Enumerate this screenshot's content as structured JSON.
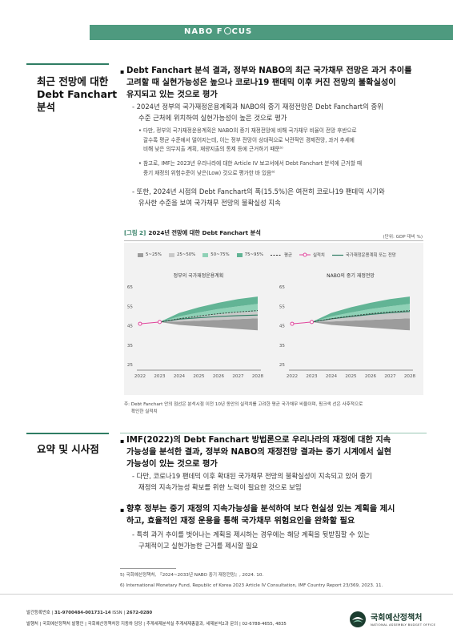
{
  "header": {
    "logo_pre": "NABO F",
    "logo_post": "CUS"
  },
  "section1": {
    "title_lines": [
      "최근 전망에 대한",
      "Debt Fanchart",
      "분석"
    ],
    "main_bullet_lines": [
      "Debt Fanchart 분석 결과, 정부와 NABO의 최근 국가채무 전망은 과거 추이를",
      "고려할 때 실현가능성은 높으나 코로나19 팬데믹 이후 커진 전망의 불확실성이",
      "유지되고 있는 것으로 평가"
    ],
    "sub1_lines": [
      "- 2024년 정부의 국가재정운용계획과 NABO의 중기 재정전망은 Debt Fanchart의 중위",
      "수준 근처에 위치하여 실현가능성이 높은 것으로 평가"
    ],
    "subsub1_lines": [
      "• 다만, 정부의 국가재정운용계획은 NABO의 중기 재정전망에 비해 국가채무 비율이 전망 후반으로",
      "갈수록 평균 수준에서 멀어지는데, 이는 정부 전망이 상대적으로 낙관적인 경제전망, 과거 추세에",
      "비해 낮은 의무지출 계획, 재량지출의 통제 등에 근거하기 때문⁵⁾"
    ],
    "subsub2_lines": [
      "• 참고로, IMF는 2023년 우리나라에 대한 Article IV 보고서에서 Debt Fanchart 분석에 근거할 때",
      "중기 재정의 위험수준이 낮은(Low) 것으로 평가한 바 있음⁶⁾"
    ],
    "sub2_lines": [
      "- 또한, 2024년 시점의 Debt Fanchart의 폭(15.5%)은 여전히 코로나19 팬데믹 시기와",
      "유사한 수준을 보여 국가채무 전망의 불확실성 지속"
    ]
  },
  "figure": {
    "tag": "[그림 2]",
    "title": "2024년 전망에 대한 Debt Fanchart 분석",
    "unit": "(단위: GDP 대비 %)",
    "legend": {
      "band1": "5~25%",
      "band2": "25~50%",
      "band3": "50~75%",
      "band4": "75~95%",
      "mean": "평균",
      "actual": "실적치",
      "plan": "국가재정운용계획 또는 전망"
    },
    "note_lines": [
      "주: Debt Fanchart 안의 점선은 분석시점 이전 10년 동안의 실적치를 고려한 평균 국가채무 비율이며, 핑크색 선은 사후적으로",
      "확인한 실적치"
    ]
  },
  "colors": {
    "band1": "#9c9c9c",
    "band2": "#c9c9c9",
    "band3": "#8fd1b6",
    "band4": "#62b495",
    "actual": "#e0449b",
    "plan": "#2f7d63",
    "accent": "#4e9a7f"
  },
  "chart_data": [
    {
      "type": "area",
      "title": "정부의 국가재정운용계획",
      "x": [
        "2022",
        "2023",
        "2024",
        "2025",
        "2026",
        "2027",
        "2028"
      ],
      "ylim": [
        25,
        65
      ],
      "yticks": [
        25,
        35,
        45,
        55,
        65
      ],
      "grid": false,
      "series": [
        {
          "name": "실적치",
          "x": [
            "2022",
            "2023"
          ],
          "values": [
            46.0,
            46.9
          ]
        },
        {
          "name": "평균",
          "values": [
            null,
            46.9,
            48.6,
            50.0,
            51.2,
            52.1,
            52.8
          ]
        },
        {
          "name": "국가재정운용계획 또는 전망",
          "values": [
            null,
            46.9,
            48.4,
            49.1,
            49.8,
            50.2,
            50.5
          ]
        }
      ],
      "bands": {
        "p5": [
          null,
          46.9,
          45.4,
          44.7,
          44.0,
          43.3,
          42.6
        ],
        "p25": [
          null,
          46.9,
          47.2,
          47.6,
          48.0,
          48.4,
          48.8
        ],
        "p50": [
          null,
          46.9,
          48.5,
          49.7,
          50.9,
          51.8,
          52.4
        ],
        "p75": [
          null,
          46.9,
          49.8,
          51.8,
          53.6,
          55.0,
          56.2
        ],
        "p95": [
          null,
          46.9,
          51.6,
          54.5,
          56.8,
          58.7,
          60.0
        ]
      }
    },
    {
      "type": "area",
      "title": "NABO의 중기 재정전망",
      "x": [
        "2022",
        "2023",
        "2024",
        "2025",
        "2026",
        "2027",
        "2028"
      ],
      "ylim": [
        25,
        65
      ],
      "yticks": [
        25,
        35,
        45,
        55,
        65
      ],
      "grid": false,
      "series": [
        {
          "name": "실적치",
          "x": [
            "2022",
            "2023"
          ],
          "values": [
            46.0,
            46.9
          ]
        },
        {
          "name": "평균",
          "values": [
            null,
            46.9,
            48.6,
            50.0,
            51.2,
            52.1,
            52.8
          ]
        },
        {
          "name": "국가재정운용계획 또는 전망",
          "values": [
            null,
            46.9,
            48.5,
            49.7,
            50.8,
            51.7,
            52.3
          ]
        }
      ],
      "bands": {
        "p5": [
          null,
          46.9,
          45.4,
          44.7,
          44.0,
          43.3,
          42.6
        ],
        "p25": [
          null,
          46.9,
          47.2,
          47.6,
          48.0,
          48.4,
          48.8
        ],
        "p50": [
          null,
          46.9,
          48.5,
          49.7,
          50.9,
          51.8,
          52.4
        ],
        "p75": [
          null,
          46.9,
          49.8,
          51.8,
          53.6,
          55.0,
          56.2
        ],
        "p95": [
          null,
          46.9,
          51.6,
          54.5,
          56.8,
          58.7,
          60.0
        ]
      }
    }
  ],
  "section2": {
    "title": "요약 및 시사점",
    "main1_lines": [
      "IMF(2022)의 Debt Fanchart 방법론으로 우리나라의 재정에 대한 지속",
      "가능성을 분석한 결과, 정부와 NABO의 재정전망 결과는 중기 시계에서 실현",
      "가능성이 있는 것으로 평가"
    ],
    "sub1_lines": [
      "- 다만, 코로나19 팬데믹 이후 확대된 국가채무 전망의 불확실성이 지속되고 있어 중기",
      "재정의 지속가능성 확보를 위한 노력이 필요한 것으로 보임"
    ],
    "main2_lines": [
      "향후 정부는 중기 재정의 지속가능성을 분석하여 보다 현실성 있는 계획을 제시",
      "하고, 효율적인 재정 운용을 통해 국가채무 위험요인을 완화할 필요"
    ],
    "sub2_lines": [
      "- 특히 과거 추이를 벗어나는 계획을 제시하는 경우에는 해당 계획을 뒷받침할 수 있는",
      "구체적이고 실현가능한 근거를 제시할 필요"
    ]
  },
  "footnotes": [
    "5)  국회예산정책처, 『2024~2033년 NABO 중기 재정전망』, 2024. 10.",
    "6)  International Monetary Fund, Republic of Korea 2023 Article IV Consultation, IMF Country Report 23/369, 2023. 11."
  ],
  "footer": {
    "line1_label": "발간등록번호",
    "line1_value": "31-9700484-001731-14",
    "issn_label": "ISSN",
    "issn_value": "2672-0280",
    "line2": "발행처 | 국회예산정책처  발행인 | 국회예산정책처장 지동하  담당 | 추계세제분석실 추계세제총괄과, 세제분석2과  문의 | 02-6788-4655, 4835",
    "org_name": "국회예산정책처",
    "org_sub": "NATIONAL ASSEMBLY BUDGET OFFICE"
  }
}
